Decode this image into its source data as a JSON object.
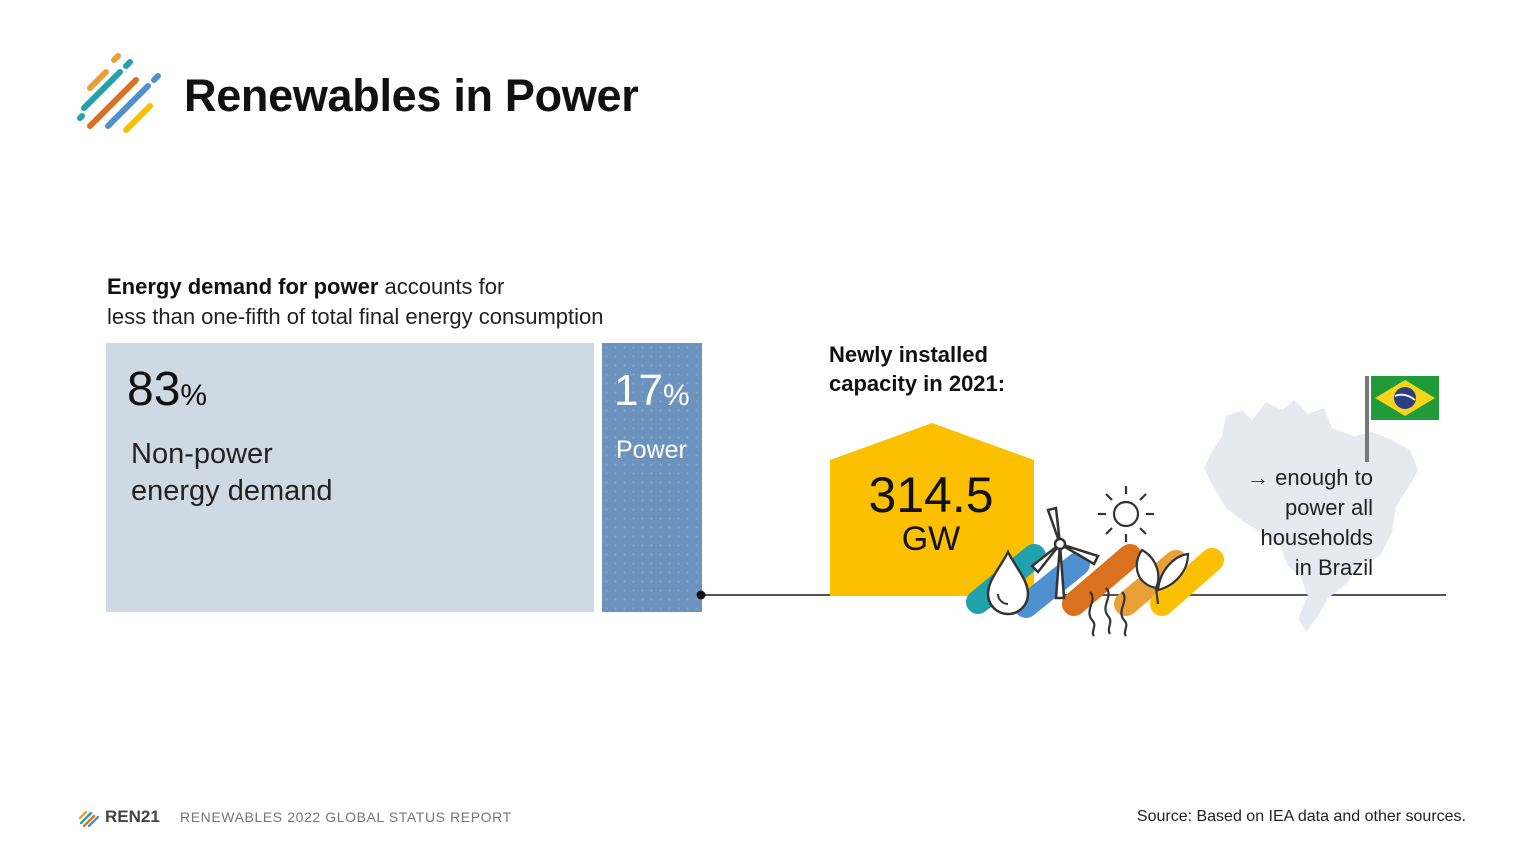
{
  "header": {
    "title": "Renewables in Power"
  },
  "intro": {
    "bold": "Energy demand for power",
    "rest_line1": " accounts for",
    "line2": "less than one-fifth of total final energy consumption"
  },
  "chart_data": {
    "type": "bar",
    "categories": [
      "Non-power energy demand",
      "Power"
    ],
    "values": [
      83,
      17
    ],
    "unit": "%"
  },
  "blocks": {
    "nonpower": {
      "pct": "83",
      "unit": "%",
      "label_line1": "Non-power",
      "label_line2": "energy demand"
    },
    "power": {
      "pct": "17",
      "unit": "%",
      "label": "Power"
    }
  },
  "capacity": {
    "heading_line1": "Newly installed",
    "heading_line2": "capacity in 2021:",
    "value": "314.5",
    "unit": "GW"
  },
  "brazil_note": {
    "line1": "→ enough to",
    "line2": "power all",
    "line3": "households",
    "line4": "in Brazil"
  },
  "footer": {
    "brand": "REN21",
    "report": "RENEWABLES 2022 GLOBAL STATUS REPORT",
    "source": "Source: Based on IEA data and other sources."
  },
  "colors": {
    "accent_yellow": "#fcc000",
    "orange": "#e9a038",
    "dark_orange": "#d9711f",
    "teal": "#1fa2ad",
    "blue": "#4e90d0",
    "nonpower_fill": "#cfd9e4",
    "power_fill": "#6c93be",
    "flag_green": "#1f9b3a",
    "flag_yellow": "#f7d417",
    "flag_blue": "#2c3f86"
  },
  "icons": [
    "ren21-logo-icon",
    "water-drop-icon",
    "wind-turbine-icon",
    "sun-icon",
    "leaf-icon",
    "heat-wave-icon",
    "brazil-map-icon",
    "brazil-flag-icon"
  ]
}
